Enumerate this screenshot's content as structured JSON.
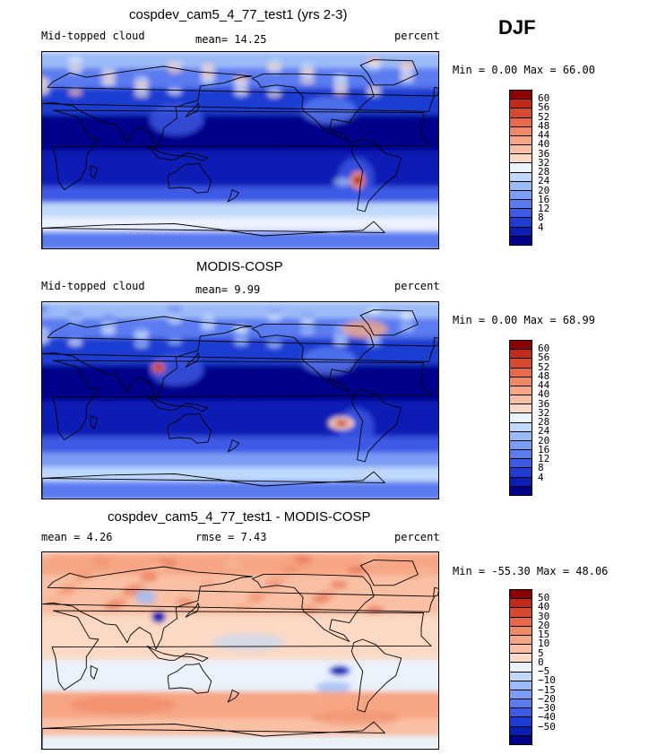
{
  "season": "DJF",
  "panels": [
    {
      "title": "cospdev_cam5_4_77_test1 (yrs 2-3)",
      "left_label": "Mid-topped cloud",
      "center_label": "mean=  14.25",
      "right_label": "percent",
      "minmax": "Min =   0.00 Max =  66.00"
    },
    {
      "title": "MODIS-COSP",
      "left_label": "Mid-topped cloud",
      "center_label": "mean=   9.99",
      "right_label": "percent",
      "minmax": "Min =   0.00 Max =  68.99"
    },
    {
      "title": "cospdev_cam5_4_77_test1 - MODIS-COSP",
      "left_label": "mean =   4.26",
      "center_label": "rmse =   7.43",
      "right_label": "percent",
      "minmax": "Min = -55.30 Max =  48.06"
    }
  ],
  "colors": {
    "abs_scale": [
      "#00008b",
      "#0a1eb4",
      "#1e3cd2",
      "#3c5ae6",
      "#5a7cf0",
      "#7a9cf5",
      "#9bbaf8",
      "#c0d8fb",
      "#eaf2fb",
      "#fbd9c4",
      "#f9c0a4",
      "#f6a684",
      "#f08a66",
      "#e86a4a",
      "#d84a30",
      "#c02a1a",
      "#8b0000"
    ],
    "diff_scale": [
      "#00008b",
      "#0a1eb4",
      "#1e3cd2",
      "#3c5ae6",
      "#5a7cf0",
      "#7a9cf5",
      "#9bbaf8",
      "#c0d8fb",
      "#eaf2fb",
      "#fbd9c4",
      "#f9c0a4",
      "#f6a684",
      "#f08a66",
      "#e86a4a",
      "#d84a30",
      "#c02a1a",
      "#8b0000"
    ],
    "coast": "#000000"
  },
  "chart_data": [
    {
      "type": "heatmap",
      "title": "cospdev_cam5_4_77_test1 (yrs 2-3)",
      "variable": "Mid-topped cloud",
      "units": "percent",
      "mean": 14.25,
      "min": 0.0,
      "max": 66.0,
      "colorbar_levels": [
        "60",
        "56",
        "52",
        "48",
        "44",
        "40",
        "36",
        "32",
        "28",
        "24",
        "20",
        "16",
        "12",
        "8",
        "4"
      ]
    },
    {
      "type": "heatmap",
      "title": "MODIS-COSP",
      "variable": "Mid-topped cloud",
      "units": "percent",
      "mean": 9.99,
      "min": 0.0,
      "max": 68.99,
      "colorbar_levels": [
        "60",
        "56",
        "52",
        "48",
        "44",
        "40",
        "36",
        "32",
        "28",
        "24",
        "20",
        "16",
        "12",
        "8",
        "4"
      ]
    },
    {
      "type": "heatmap",
      "title": "cospdev_cam5_4_77_test1 - MODIS-COSP",
      "units": "percent",
      "mean": 4.26,
      "rmse": 7.43,
      "min": -55.3,
      "max": 48.06,
      "colorbar_levels": [
        "50",
        "40",
        "30",
        "20",
        "15",
        "10",
        "5",
        "0",
        "−5",
        "−10",
        "−15",
        "−20",
        "−30",
        "−40",
        "−50"
      ]
    }
  ]
}
